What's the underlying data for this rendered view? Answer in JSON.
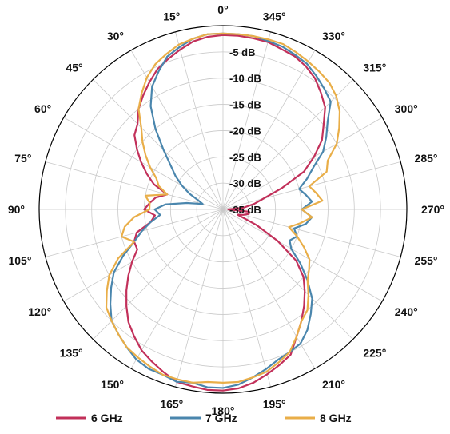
{
  "chart_data": {
    "type": "polar-line",
    "title": "",
    "angular_axis": {
      "unit": "degrees",
      "direction": "counterclockwise",
      "zero_position": "top",
      "tick_labels": [
        "0°",
        "15°",
        "30°",
        "45°",
        "60°",
        "75°",
        "90°",
        "105°",
        "120°",
        "135°",
        "150°",
        "165°",
        "180°",
        "195°",
        "210°",
        "225°",
        "240°",
        "255°",
        "270°",
        "285°",
        "300°",
        "315°",
        "330°",
        "345°"
      ]
    },
    "radial_axis": {
      "unit": "dB",
      "range": [
        -35,
        0
      ],
      "tick_labels": [
        "-5 dB",
        "-10 dB",
        "-15 dB",
        "-20 dB",
        "-25 dB",
        "-30 dB",
        "-35 dB"
      ]
    },
    "grid": true,
    "legend_position": "bottom",
    "series": [
      {
        "name": "6 GHz",
        "color": "#c2305a",
        "theta": [
          0,
          5,
          10,
          15,
          20,
          25,
          30,
          35,
          40,
          45,
          50,
          55,
          60,
          65,
          70,
          75,
          80,
          85,
          90,
          95,
          100,
          105,
          110,
          115,
          120,
          125,
          130,
          135,
          140,
          145,
          150,
          155,
          160,
          165,
          170,
          175,
          180,
          185,
          190,
          195,
          200,
          205,
          210,
          215,
          220,
          225,
          230,
          235,
          240,
          245,
          250,
          255,
          260,
          265,
          270,
          275,
          280,
          285,
          290,
          295,
          300,
          305,
          310,
          315,
          320,
          325,
          330,
          335,
          340,
          345,
          350,
          355
        ],
        "values": [
          -1.8,
          -2,
          -2.5,
          -3.5,
          -4.5,
          -5.5,
          -7,
          -8.5,
          -10,
          -12,
          -13,
          -15,
          -17,
          -19,
          -21,
          -24,
          -22,
          -21,
          -20,
          -22,
          -21,
          -18,
          -17,
          -17,
          -15,
          -13,
          -11,
          -9,
          -7,
          -5.5,
          -4,
          -3,
          -2,
          -1,
          -0.8,
          -0.5,
          -0.5,
          -0.8,
          -1.5,
          -2.5,
          -3.5,
          -4.5,
          -7,
          -9,
          -11,
          -13,
          -15,
          -18,
          -23,
          -28,
          -32,
          -31,
          -30,
          -30,
          -34,
          -31,
          -29,
          -27,
          -23,
          -18,
          -15,
          -12,
          -10,
          -7.5,
          -6,
          -4.5,
          -3.5,
          -2.8,
          -2.5,
          -2,
          -1.9,
          -1.8
        ]
      },
      {
        "name": "7 GHz",
        "color": "#4a86ad",
        "theta": [
          0,
          5,
          10,
          15,
          20,
          25,
          30,
          35,
          40,
          45,
          50,
          55,
          60,
          65,
          70,
          75,
          80,
          85,
          90,
          95,
          100,
          105,
          110,
          115,
          120,
          125,
          130,
          135,
          140,
          145,
          150,
          155,
          160,
          165,
          170,
          175,
          180,
          185,
          190,
          195,
          200,
          205,
          210,
          215,
          220,
          225,
          230,
          235,
          240,
          245,
          250,
          255,
          260,
          265,
          270,
          275,
          280,
          285,
          290,
          295,
          300,
          305,
          310,
          315,
          320,
          325,
          330,
          335,
          340,
          345,
          350,
          355
        ],
        "values": [
          -1.5,
          -1.5,
          -2,
          -3,
          -4,
          -6,
          -8,
          -11,
          -15,
          -19,
          -22,
          -24,
          -26,
          -28,
          -30,
          -31,
          -28,
          -24,
          -22,
          -23,
          -21,
          -19,
          -17,
          -14,
          -11,
          -9,
          -7,
          -5,
          -4,
          -3,
          -2,
          -1.5,
          -1.5,
          -1,
          -1.5,
          -1,
          -1,
          -1.5,
          -2.5,
          -3.5,
          -4.5,
          -5,
          -5.5,
          -7,
          -9,
          -11,
          -14,
          -17,
          -20,
          -21,
          -20,
          -21,
          -19,
          -18,
          -20,
          -18,
          -19,
          -20,
          -18,
          -16,
          -13,
          -11,
          -9,
          -6,
          -5,
          -4,
          -3,
          -2.5,
          -2,
          -1.8,
          -1.5,
          -1.5
        ]
      },
      {
        "name": "8 GHz",
        "color": "#e9ae48",
        "theta": [
          0,
          5,
          10,
          15,
          20,
          25,
          30,
          35,
          40,
          45,
          50,
          55,
          60,
          65,
          70,
          75,
          80,
          85,
          90,
          95,
          100,
          105,
          110,
          115,
          120,
          125,
          130,
          135,
          140,
          145,
          150,
          155,
          160,
          165,
          170,
          175,
          180,
          185,
          190,
          195,
          200,
          205,
          210,
          215,
          220,
          225,
          230,
          235,
          240,
          245,
          250,
          255,
          260,
          265,
          270,
          275,
          280,
          285,
          290,
          295,
          300,
          305,
          310,
          315,
          320,
          325,
          330,
          335,
          340,
          345,
          350,
          355
        ],
        "values": [
          -1.5,
          -1.5,
          -2,
          -2.5,
          -3.5,
          -4.5,
          -6,
          -8,
          -10,
          -13,
          -15,
          -17,
          -19,
          -21,
          -22,
          -24,
          -20,
          -21,
          -21,
          -18,
          -16,
          -15,
          -17,
          -13,
          -10,
          -8,
          -6,
          -5,
          -4,
          -3,
          -2.5,
          -2,
          -1.5,
          -1.5,
          -1.5,
          -2,
          -2,
          -2,
          -2.5,
          -3,
          -4,
          -5,
          -7,
          -9,
          -10,
          -12,
          -14,
          -15,
          -16,
          -18,
          -20,
          -22,
          -20,
          -18,
          -20,
          -16,
          -17,
          -18,
          -14,
          -13,
          -10,
          -8,
          -6,
          -4.5,
          -3.5,
          -3,
          -2.5,
          -2,
          -1.5,
          -1.5,
          -1.5,
          -1.5
        ]
      }
    ]
  }
}
